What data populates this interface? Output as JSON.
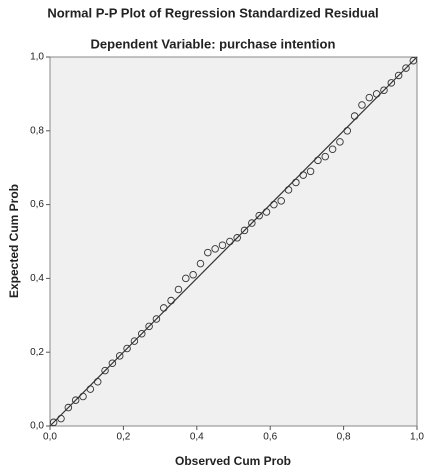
{
  "chart_data": {
    "type": "pp-plot",
    "title": "Normal P-P Plot of Regression Standardized Residual",
    "subtitle": "Dependent Variable: purchase intention",
    "x_label": "Observed Cum Prob",
    "y_label": "Expected Cum Prob",
    "x": [
      0.01,
      0.03,
      0.05,
      0.07,
      0.09,
      0.11,
      0.13,
      0.15,
      0.17,
      0.19,
      0.21,
      0.23,
      0.25,
      0.27,
      0.29,
      0.31,
      0.33,
      0.35,
      0.37,
      0.39,
      0.41,
      0.43,
      0.45,
      0.47,
      0.49,
      0.51,
      0.53,
      0.55,
      0.57,
      0.59,
      0.61,
      0.63,
      0.65,
      0.67,
      0.69,
      0.71,
      0.73,
      0.75,
      0.77,
      0.79,
      0.81,
      0.83,
      0.85,
      0.87,
      0.89,
      0.91,
      0.93,
      0.95,
      0.97,
      0.99
    ],
    "y": [
      0.01,
      0.02,
      0.05,
      0.07,
      0.08,
      0.1,
      0.12,
      0.15,
      0.17,
      0.19,
      0.21,
      0.23,
      0.25,
      0.27,
      0.29,
      0.32,
      0.34,
      0.37,
      0.4,
      0.41,
      0.44,
      0.47,
      0.48,
      0.49,
      0.5,
      0.51,
      0.53,
      0.55,
      0.57,
      0.58,
      0.6,
      0.61,
      0.64,
      0.66,
      0.68,
      0.69,
      0.72,
      0.73,
      0.75,
      0.77,
      0.8,
      0.84,
      0.87,
      0.89,
      0.9,
      0.91,
      0.93,
      0.95,
      0.97,
      0.99
    ],
    "diagonal": {
      "x": [
        0,
        1
      ],
      "y": [
        0,
        1
      ]
    },
    "marker_color": "#333333",
    "line_color": "#333333",
    "xlim": [
      0,
      1
    ],
    "ylim": [
      0,
      1
    ],
    "xticks": [
      {
        "value": 0,
        "label": "0,0"
      },
      {
        "value": 0.2,
        "label": "0,2"
      },
      {
        "value": 0.4,
        "label": "0,4"
      },
      {
        "value": 0.6,
        "label": "0,6"
      },
      {
        "value": 0.8,
        "label": "0,8"
      },
      {
        "value": 1,
        "label": "1,0"
      }
    ],
    "yticks": [
      {
        "value": 0,
        "label": "0,0"
      },
      {
        "value": 0.2,
        "label": "0,2"
      },
      {
        "value": 0.4,
        "label": "0,4"
      },
      {
        "value": 0.6,
        "label": "0,6"
      },
      {
        "value": 0.8,
        "label": "0,8"
      },
      {
        "value": 1,
        "label": "1,0"
      }
    ]
  }
}
